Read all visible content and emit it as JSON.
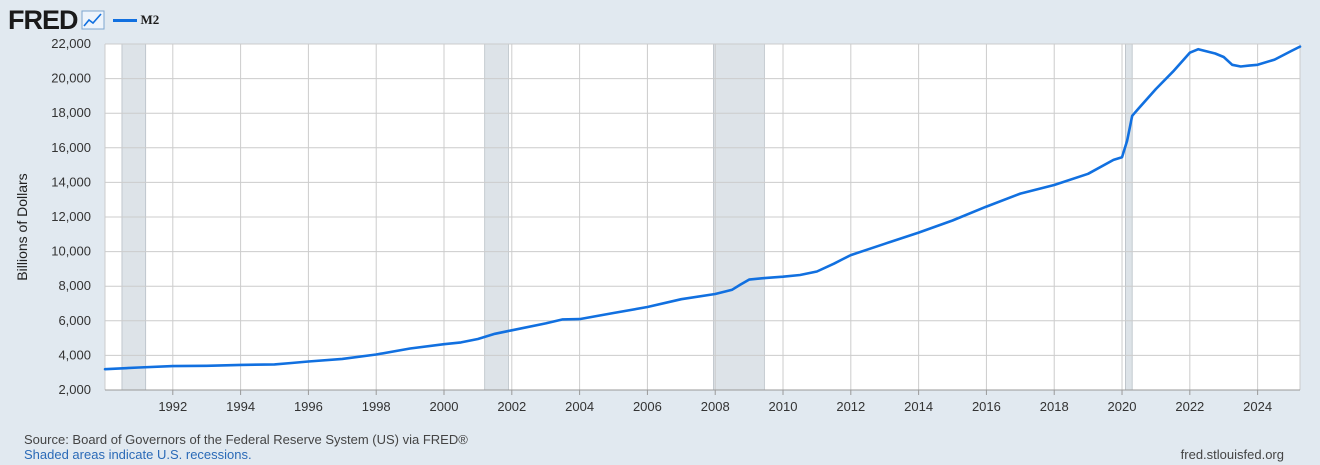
{
  "header": {
    "logo_text": "FRED",
    "legend_label": "M2"
  },
  "colors": {
    "series": "#1170e0",
    "recession": "#dde3e8",
    "background": "#e1e9f0",
    "plot_background": "#ffffff",
    "grid": "#cccccc"
  },
  "footer": {
    "source": "Source: Board of Governors of the Federal Reserve System (US) via FRED®",
    "recession_note": "Shaded areas indicate U.S. recessions.",
    "site": "fred.stlouisfed.org"
  },
  "chart_data": {
    "type": "line",
    "title": "",
    "xlabel": "",
    "ylabel": "Billions of Dollars",
    "xlim": [
      1990.0,
      2025.25
    ],
    "ylim": [
      2000,
      22000
    ],
    "grid": true,
    "legend_position": "top-left",
    "x_ticks": [
      1992,
      1994,
      1996,
      1998,
      2000,
      2002,
      2004,
      2006,
      2008,
      2010,
      2012,
      2014,
      2016,
      2018,
      2020,
      2022,
      2024
    ],
    "y_ticks": [
      2000,
      4000,
      6000,
      8000,
      10000,
      12000,
      14000,
      16000,
      18000,
      20000,
      22000
    ],
    "recessions": [
      {
        "start": 1990.5,
        "end": 1991.2
      },
      {
        "start": 2001.2,
        "end": 2001.9
      },
      {
        "start": 2007.95,
        "end": 2009.45
      },
      {
        "start": 2020.1,
        "end": 2020.3
      }
    ],
    "series": [
      {
        "name": "M2",
        "points": [
          [
            1990.0,
            3200
          ],
          [
            1991.0,
            3300
          ],
          [
            1992.0,
            3380
          ],
          [
            1993.0,
            3400
          ],
          [
            1994.0,
            3450
          ],
          [
            1995.0,
            3480
          ],
          [
            1995.5,
            3560
          ],
          [
            1996.0,
            3650
          ],
          [
            1997.0,
            3800
          ],
          [
            1998.0,
            4050
          ],
          [
            1999.0,
            4400
          ],
          [
            2000.0,
            4650
          ],
          [
            2000.5,
            4750
          ],
          [
            2001.0,
            4950
          ],
          [
            2001.5,
            5250
          ],
          [
            2002.0,
            5450
          ],
          [
            2003.0,
            5850
          ],
          [
            2003.5,
            6080
          ],
          [
            2004.0,
            6100
          ],
          [
            2005.0,
            6450
          ],
          [
            2006.0,
            6800
          ],
          [
            2007.0,
            7250
          ],
          [
            2008.0,
            7550
          ],
          [
            2008.5,
            7800
          ],
          [
            2008.75,
            8100
          ],
          [
            2009.0,
            8380
          ],
          [
            2009.5,
            8480
          ],
          [
            2010.0,
            8550
          ],
          [
            2010.5,
            8650
          ],
          [
            2011.0,
            8850
          ],
          [
            2011.5,
            9300
          ],
          [
            2011.75,
            9550
          ],
          [
            2012.0,
            9800
          ],
          [
            2013.0,
            10450
          ],
          [
            2014.0,
            11100
          ],
          [
            2015.0,
            11800
          ],
          [
            2016.0,
            12600
          ],
          [
            2017.0,
            13350
          ],
          [
            2018.0,
            13850
          ],
          [
            2019.0,
            14500
          ],
          [
            2019.75,
            15300
          ],
          [
            2020.0,
            15450
          ],
          [
            2020.15,
            16400
          ],
          [
            2020.3,
            17850
          ],
          [
            2020.5,
            18300
          ],
          [
            2021.0,
            19400
          ],
          [
            2021.5,
            20400
          ],
          [
            2022.0,
            21500
          ],
          [
            2022.25,
            21700
          ],
          [
            2022.75,
            21450
          ],
          [
            2023.0,
            21250
          ],
          [
            2023.25,
            20800
          ],
          [
            2023.5,
            20700
          ],
          [
            2023.75,
            20750
          ],
          [
            2024.0,
            20800
          ],
          [
            2024.5,
            21100
          ],
          [
            2025.0,
            21600
          ],
          [
            2025.25,
            21850
          ]
        ]
      }
    ]
  }
}
